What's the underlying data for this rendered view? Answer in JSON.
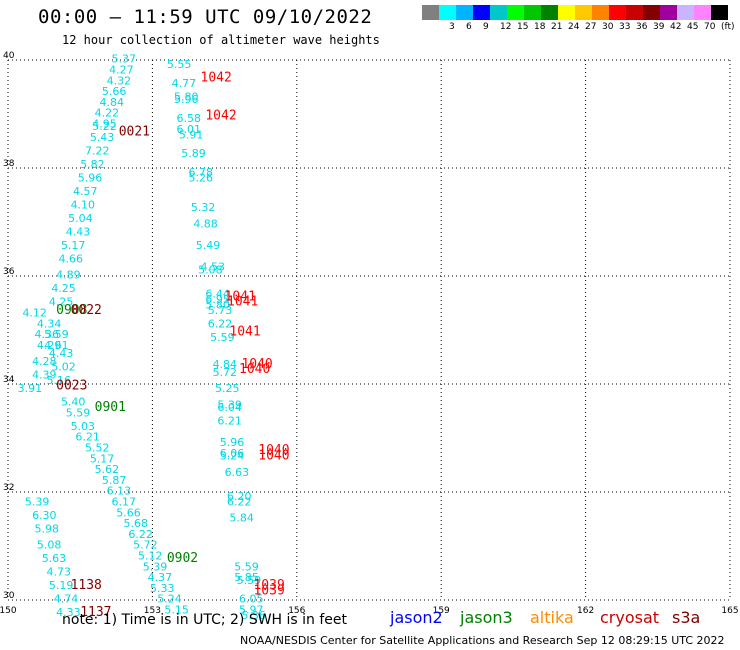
{
  "header": {
    "title": "00:00 – 11:59 UTC 09/10/2022",
    "subtitle": "12 hour collection of altimeter wave heights"
  },
  "legend": {
    "swatches": [
      {
        "color": "#808080",
        "label": ""
      },
      {
        "color": "#00ffff",
        "label": "3"
      },
      {
        "color": "#00b4ff",
        "label": "6"
      },
      {
        "color": "#0000ff",
        "label": "9"
      },
      {
        "color": "#00c8c8",
        "label": "12"
      },
      {
        "color": "#00ff00",
        "label": "15"
      },
      {
        "color": "#00c800",
        "label": "18"
      },
      {
        "color": "#008200",
        "label": "21"
      },
      {
        "color": "#ffff00",
        "label": "24"
      },
      {
        "color": "#ffc800",
        "label": "27"
      },
      {
        "color": "#ff8200",
        "label": "30"
      },
      {
        "color": "#ff0000",
        "label": "33"
      },
      {
        "color": "#c80000",
        "label": "36"
      },
      {
        "color": "#820000",
        "label": "39"
      },
      {
        "color": "#a000a0",
        "label": "42"
      },
      {
        "color": "#c8b4ff",
        "label": "45"
      },
      {
        "color": "#ff82ff",
        "label": "70"
      },
      {
        "color": "#000000",
        "label": "(ft)"
      }
    ]
  },
  "map": {
    "lon_range": [
      150,
      165
    ],
    "lat_range": [
      30,
      40
    ],
    "lon_ticks": [
      "150",
      "153",
      "156",
      "159",
      "162",
      "165"
    ],
    "lat_ticks": [
      "30",
      "32",
      "34",
      "36",
      "38",
      "40"
    ],
    "colors": {
      "swh": "#00d8e8",
      "jason3": "#008000",
      "cryosat": "#800000",
      "s3a": "#ff0000",
      "grid": "#000000"
    },
    "swh_labels": [
      {
        "lon": 152.15,
        "lat": 39.95,
        "t": "5.37"
      },
      {
        "lon": 152.1,
        "lat": 39.75,
        "t": "4.27"
      },
      {
        "lon": 152.05,
        "lat": 39.55,
        "t": "4.32"
      },
      {
        "lon": 151.95,
        "lat": 39.35,
        "t": "5.66"
      },
      {
        "lon": 151.9,
        "lat": 39.15,
        "t": "4.84"
      },
      {
        "lon": 151.8,
        "lat": 38.95,
        "t": "4.22"
      },
      {
        "lon": 151.75,
        "lat": 38.75,
        "t": "4.95"
      },
      {
        "lon": 151.75,
        "lat": 38.7,
        "t": "5.22"
      },
      {
        "lon": 151.7,
        "lat": 38.5,
        "t": "5.43"
      },
      {
        "lon": 151.6,
        "lat": 38.25,
        "t": "7.22"
      },
      {
        "lon": 151.5,
        "lat": 38.0,
        "t": "5.82"
      },
      {
        "lon": 151.45,
        "lat": 37.75,
        "t": "5.96"
      },
      {
        "lon": 151.35,
        "lat": 37.5,
        "t": "4.57"
      },
      {
        "lon": 151.3,
        "lat": 37.25,
        "t": "4.10"
      },
      {
        "lon": 151.25,
        "lat": 37.0,
        "t": "5.04"
      },
      {
        "lon": 151.2,
        "lat": 36.75,
        "t": "4.43"
      },
      {
        "lon": 151.1,
        "lat": 36.5,
        "t": "5.17"
      },
      {
        "lon": 151.05,
        "lat": 36.25,
        "t": "4.66"
      },
      {
        "lon": 151.0,
        "lat": 35.95,
        "t": "4.89"
      },
      {
        "lon": 150.9,
        "lat": 35.7,
        "t": "4.25"
      },
      {
        "lon": 150.85,
        "lat": 35.45,
        "t": "4.25"
      },
      {
        "lon": 150.3,
        "lat": 35.25,
        "t": "4.12"
      },
      {
        "lon": 150.6,
        "lat": 35.05,
        "t": "4.34"
      },
      {
        "lon": 150.55,
        "lat": 34.85,
        "t": "4.36"
      },
      {
        "lon": 150.75,
        "lat": 34.85,
        "t": "5.59"
      },
      {
        "lon": 150.6,
        "lat": 34.65,
        "t": "4.29"
      },
      {
        "lon": 150.75,
        "lat": 34.65,
        "t": "4.61"
      },
      {
        "lon": 150.85,
        "lat": 34.5,
        "t": "4.43"
      },
      {
        "lon": 150.5,
        "lat": 34.35,
        "t": "4.28"
      },
      {
        "lon": 150.9,
        "lat": 34.25,
        "t": "5.02"
      },
      {
        "lon": 150.5,
        "lat": 34.1,
        "t": "4.39"
      },
      {
        "lon": 150.8,
        "lat": 34.0,
        "t": "5.16"
      },
      {
        "lon": 150.2,
        "lat": 33.85,
        "t": "3.91"
      },
      {
        "lon": 151.1,
        "lat": 33.6,
        "t": "5.40"
      },
      {
        "lon": 151.2,
        "lat": 33.4,
        "t": "5.59"
      },
      {
        "lon": 151.3,
        "lat": 33.15,
        "t": "5.03"
      },
      {
        "lon": 151.4,
        "lat": 32.95,
        "t": "6.21"
      },
      {
        "lon": 151.6,
        "lat": 32.75,
        "t": "5.52"
      },
      {
        "lon": 151.7,
        "lat": 32.55,
        "t": "5.17"
      },
      {
        "lon": 151.8,
        "lat": 32.35,
        "t": "5.62"
      },
      {
        "lon": 151.95,
        "lat": 32.15,
        "t": "5.87"
      },
      {
        "lon": 152.05,
        "lat": 31.95,
        "t": "6.13"
      },
      {
        "lon": 152.15,
        "lat": 31.75,
        "t": "6.17"
      },
      {
        "lon": 152.25,
        "lat": 31.55,
        "t": "5.66"
      },
      {
        "lon": 152.4,
        "lat": 31.35,
        "t": "5.68"
      },
      {
        "lon": 152.5,
        "lat": 31.15,
        "t": "6.22"
      },
      {
        "lon": 152.6,
        "lat": 30.95,
        "t": "5.72"
      },
      {
        "lon": 152.7,
        "lat": 30.75,
        "t": "5.12"
      },
      {
        "lon": 152.8,
        "lat": 30.55,
        "t": "5.39"
      },
      {
        "lon": 152.9,
        "lat": 30.35,
        "t": "4.37"
      },
      {
        "lon": 152.95,
        "lat": 30.15,
        "t": "5.33"
      },
      {
        "lon": 153.1,
        "lat": 29.95,
        "t": "5.24"
      },
      {
        "lon": 153.25,
        "lat": 29.75,
        "t": "5.15"
      },
      {
        "lon": 150.35,
        "lat": 31.75,
        "t": "5.39"
      },
      {
        "lon": 150.5,
        "lat": 31.5,
        "t": "6.30"
      },
      {
        "lon": 150.55,
        "lat": 31.25,
        "t": "5.98"
      },
      {
        "lon": 150.6,
        "lat": 30.95,
        "t": "5.08"
      },
      {
        "lon": 150.7,
        "lat": 30.7,
        "t": "5.63"
      },
      {
        "lon": 150.8,
        "lat": 30.45,
        "t": "4.73"
      },
      {
        "lon": 150.85,
        "lat": 30.2,
        "t": "5.19"
      },
      {
        "lon": 150.95,
        "lat": 29.95,
        "t": "4.74"
      },
      {
        "lon": 151.0,
        "lat": 29.7,
        "t": "4.33"
      },
      {
        "lon": 153.3,
        "lat": 39.85,
        "t": "5.55"
      },
      {
        "lon": 153.4,
        "lat": 39.5,
        "t": "4.77"
      },
      {
        "lon": 153.45,
        "lat": 39.25,
        "t": "5.80"
      },
      {
        "lon": 153.45,
        "lat": 39.2,
        "t": "5.96"
      },
      {
        "lon": 153.5,
        "lat": 38.85,
        "t": "6.58"
      },
      {
        "lon": 153.5,
        "lat": 38.65,
        "t": "6.01"
      },
      {
        "lon": 153.55,
        "lat": 38.55,
        "t": "5.91"
      },
      {
        "lon": 153.6,
        "lat": 38.2,
        "t": "5.89"
      },
      {
        "lon": 153.75,
        "lat": 37.85,
        "t": "6.78"
      },
      {
        "lon": 153.75,
        "lat": 37.75,
        "t": "5.26"
      },
      {
        "lon": 153.8,
        "lat": 37.2,
        "t": "5.32"
      },
      {
        "lon": 153.85,
        "lat": 36.9,
        "t": "4.88"
      },
      {
        "lon": 153.9,
        "lat": 36.5,
        "t": "5.49"
      },
      {
        "lon": 154.0,
        "lat": 36.1,
        "t": "4.53"
      },
      {
        "lon": 153.95,
        "lat": 36.05,
        "t": "5.08"
      },
      {
        "lon": 154.1,
        "lat": 35.6,
        "t": "6.44"
      },
      {
        "lon": 154.1,
        "lat": 35.5,
        "t": "6.95"
      },
      {
        "lon": 154.1,
        "lat": 35.4,
        "t": "5.80"
      },
      {
        "lon": 154.15,
        "lat": 35.3,
        "t": "5.73"
      },
      {
        "lon": 154.15,
        "lat": 35.05,
        "t": "6.22"
      },
      {
        "lon": 154.2,
        "lat": 34.8,
        "t": "5.59"
      },
      {
        "lon": 154.25,
        "lat": 34.3,
        "t": "4.84"
      },
      {
        "lon": 154.25,
        "lat": 34.15,
        "t": "5.72"
      },
      {
        "lon": 154.3,
        "lat": 33.85,
        "t": "5.25"
      },
      {
        "lon": 154.35,
        "lat": 33.55,
        "t": "5.39"
      },
      {
        "lon": 154.35,
        "lat": 33.5,
        "t": "6.04"
      },
      {
        "lon": 154.35,
        "lat": 33.25,
        "t": "6.21"
      },
      {
        "lon": 154.4,
        "lat": 32.85,
        "t": "5.96"
      },
      {
        "lon": 154.4,
        "lat": 32.65,
        "t": "6.06"
      },
      {
        "lon": 154.4,
        "lat": 32.6,
        "t": "5.24"
      },
      {
        "lon": 154.5,
        "lat": 32.3,
        "t": "6.63"
      },
      {
        "lon": 154.55,
        "lat": 31.85,
        "t": "6.20"
      },
      {
        "lon": 154.55,
        "lat": 31.75,
        "t": "6.22"
      },
      {
        "lon": 154.6,
        "lat": 31.45,
        "t": "5.84"
      },
      {
        "lon": 154.7,
        "lat": 30.55,
        "t": "5.59"
      },
      {
        "lon": 154.7,
        "lat": 30.35,
        "t": "5.85"
      },
      {
        "lon": 154.75,
        "lat": 30.3,
        "t": "5.59"
      },
      {
        "lon": 154.8,
        "lat": 29.95,
        "t": "6.05"
      },
      {
        "lon": 154.8,
        "lat": 29.75,
        "t": "5.97"
      },
      {
        "lon": 154.85,
        "lat": 29.65,
        "t": "5.36"
      }
    ],
    "pass_labels": [
      {
        "lon": 152.3,
        "lat": 38.6,
        "t": "0021",
        "c": "cryosat"
      },
      {
        "lon": 151.0,
        "lat": 35.3,
        "t": "0908",
        "c": "jason3"
      },
      {
        "lon": 151.3,
        "lat": 35.3,
        "t": "0022",
        "c": "cryosat"
      },
      {
        "lon": 151.0,
        "lat": 33.9,
        "t": "0023",
        "c": "cryosat"
      },
      {
        "lon": 151.8,
        "lat": 33.5,
        "t": "0901",
        "c": "jason3"
      },
      {
        "lon": 153.3,
        "lat": 30.7,
        "t": "0902",
        "c": "jason3"
      },
      {
        "lon": 151.3,
        "lat": 30.2,
        "t": "1138",
        "c": "cryosat"
      },
      {
        "lon": 151.5,
        "lat": 29.7,
        "t": "1137",
        "c": "cryosat"
      },
      {
        "lon": 154.0,
        "lat": 39.6,
        "t": "1042",
        "c": "s3a"
      },
      {
        "lon": 154.1,
        "lat": 38.9,
        "t": "1042",
        "c": "s3a"
      },
      {
        "lon": 154.5,
        "lat": 35.55,
        "t": "1041",
        "c": "s3a"
      },
      {
        "lon": 154.55,
        "lat": 35.45,
        "t": "1041",
        "c": "s3a"
      },
      {
        "lon": 154.6,
        "lat": 34.9,
        "t": "1041",
        "c": "s3a"
      },
      {
        "lon": 154.85,
        "lat": 34.3,
        "t": "1040",
        "c": "s3a"
      },
      {
        "lon": 154.8,
        "lat": 34.2,
        "t": "1040",
        "c": "s3a"
      },
      {
        "lon": 155.2,
        "lat": 32.7,
        "t": "1040",
        "c": "s3a"
      },
      {
        "lon": 155.2,
        "lat": 32.6,
        "t": "1040",
        "c": "s3a"
      },
      {
        "lon": 155.1,
        "lat": 30.2,
        "t": "1039",
        "c": "s3a"
      },
      {
        "lon": 155.1,
        "lat": 30.1,
        "t": "1039",
        "c": "s3a"
      }
    ]
  },
  "footer": {
    "note": "note:  1) Time is in UTC;  2) SWH is in feet",
    "credit": "NOAA/NESDIS Center for Satellite Applications and Research     Sep 12 08:29:15 UTC 2022",
    "satellites": [
      {
        "name": "jason2",
        "color": "#0000ff"
      },
      {
        "name": "jason3",
        "color": "#008000"
      },
      {
        "name": "altika",
        "color": "#ff8c00"
      },
      {
        "name": "cryosat",
        "color": "#cc0000"
      },
      {
        "name": "s3a",
        "color": "#800000"
      }
    ]
  }
}
